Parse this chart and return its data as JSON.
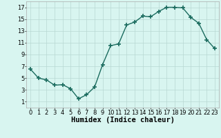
{
  "x": [
    0,
    1,
    2,
    3,
    4,
    5,
    6,
    7,
    8,
    9,
    10,
    11,
    12,
    13,
    14,
    15,
    16,
    17,
    18,
    19,
    20,
    21,
    22,
    23
  ],
  "y": [
    6.5,
    5.0,
    4.7,
    3.8,
    3.9,
    3.2,
    1.5,
    2.2,
    3.5,
    7.3,
    10.5,
    10.8,
    14.0,
    14.5,
    15.5,
    15.4,
    16.3,
    17.0,
    17.0,
    16.9,
    15.3,
    14.3,
    11.5,
    10.0
  ],
  "line_color": "#1a6b5e",
  "marker": "+",
  "marker_size": 4,
  "bg_color": "#d8f5f0",
  "grid_color": "#b8d8d2",
  "xlabel": "Humidex (Indice chaleur)",
  "xlim": [
    -0.5,
    23.5
  ],
  "ylim": [
    0,
    18
  ],
  "yticks": [
    1,
    3,
    5,
    7,
    9,
    11,
    13,
    15,
    17
  ],
  "xticks": [
    0,
    1,
    2,
    3,
    4,
    5,
    6,
    7,
    8,
    9,
    10,
    11,
    12,
    13,
    14,
    15,
    16,
    17,
    18,
    19,
    20,
    21,
    22,
    23
  ],
  "tick_fontsize": 6.0,
  "xlabel_fontsize": 7.5,
  "xlabel_fontweight": "bold",
  "linewidth": 1.0,
  "marker_linewidth": 1.2
}
